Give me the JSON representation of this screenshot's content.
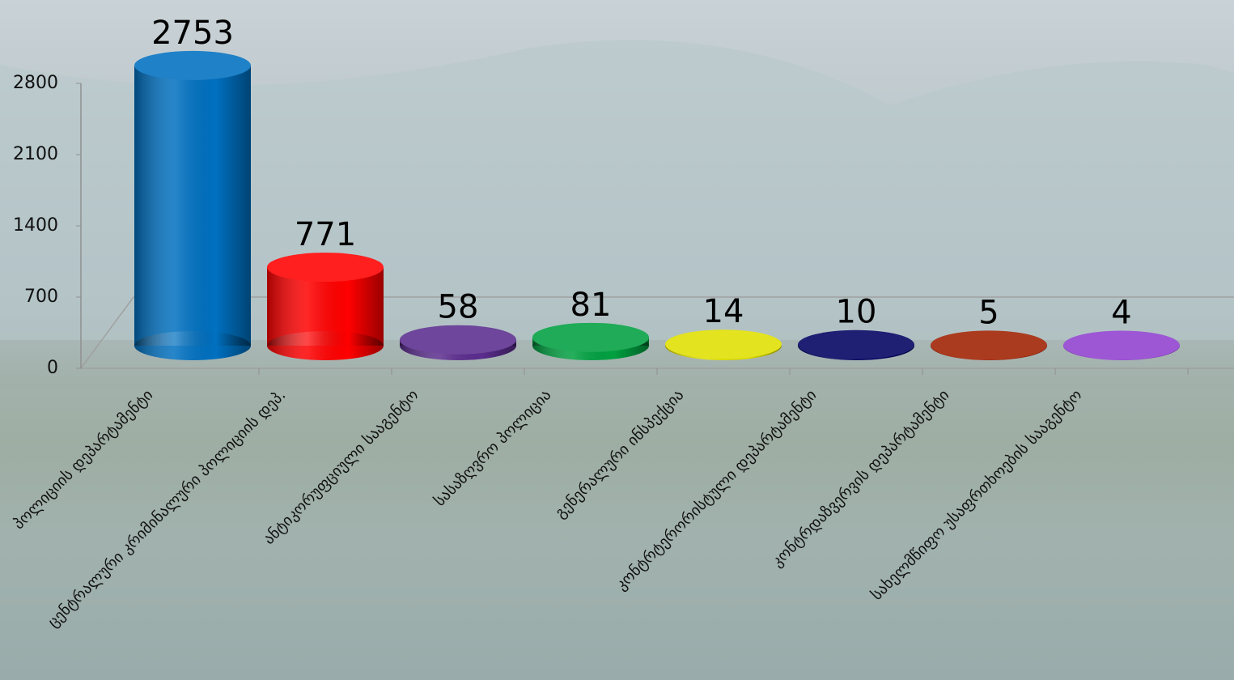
{
  "chart_data": {
    "type": "bar3d",
    "categories": [
      "პოლიციის დეპარტამენტი",
      "ცენტრალური კრიმინალური პოლიციის დეპ.",
      "ანტიკორუფციული სააგენტო",
      "სასაზღვრო პოლიცია",
      "გენერალური ინსპექცია",
      "კონტრტერორისტული დეპარტამენტი",
      "კონტრდაზვერვის დეპარტამენტი",
      "სახელმწიფო უსაფრთხოების სააგენტო"
    ],
    "values": [
      2753,
      771,
      58,
      81,
      14,
      10,
      5,
      4
    ],
    "colors": [
      "#0070c0",
      "#ff0000",
      "#5b2d8e",
      "#00a040",
      "#e0e000",
      "#000060",
      "#a02000",
      "#9040d0"
    ],
    "ylim": [
      0,
      2800
    ],
    "yticks": [
      0,
      700,
      1400,
      2100,
      2800
    ]
  }
}
